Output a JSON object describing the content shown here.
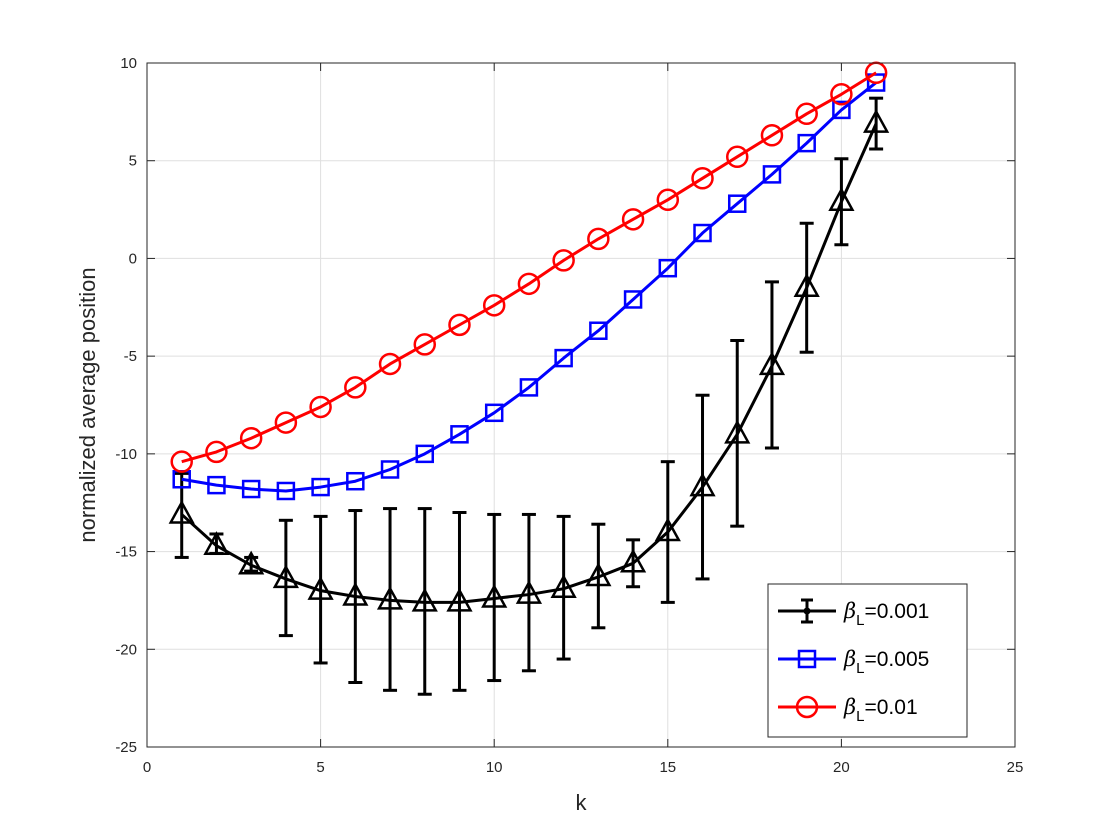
{
  "chart_data": {
    "type": "line",
    "title": "",
    "xlabel": "k",
    "ylabel": "normalized average position",
    "xlim": [
      0,
      25
    ],
    "ylim": [
      -25,
      10
    ],
    "xticks": [
      0,
      5,
      10,
      15,
      20,
      25
    ],
    "yticks": [
      -25,
      -20,
      -15,
      -10,
      -5,
      0,
      5,
      10
    ],
    "grid": true,
    "legend_position": "bottom-right",
    "x": [
      1,
      2,
      3,
      4,
      5,
      6,
      7,
      8,
      9,
      10,
      11,
      12,
      13,
      14,
      15,
      16,
      17,
      18,
      19,
      20,
      21
    ],
    "series": [
      {
        "name": "0.001",
        "legend": {
          "symbol": "β",
          "sub": "L",
          "value": "=0.001"
        },
        "color": "#000000",
        "marker": "triangle",
        "values": [
          -13.1,
          -14.7,
          -15.7,
          -16.4,
          -17.0,
          -17.3,
          -17.5,
          -17.6,
          -17.6,
          -17.4,
          -17.2,
          -16.9,
          -16.3,
          -15.6,
          -14.0,
          -11.7,
          -9.0,
          -5.5,
          -1.5,
          2.9,
          6.9
        ],
        "error_low": [
          -15.3,
          -15.1,
          -16.0,
          -19.3,
          -20.7,
          -21.7,
          -22.1,
          -22.3,
          -22.1,
          -21.6,
          -21.1,
          -20.5,
          -18.9,
          -16.8,
          -17.6,
          -16.4,
          -13.7,
          -9.7,
          -4.8,
          0.7,
          5.6
        ],
        "error_high": [
          -11.0,
          -14.1,
          -15.3,
          -13.4,
          -13.2,
          -12.9,
          -12.8,
          -12.8,
          -13.0,
          -13.1,
          -13.1,
          -13.2,
          -13.6,
          -14.4,
          -10.4,
          -7.0,
          -4.2,
          -1.2,
          1.8,
          5.1,
          8.2
        ]
      },
      {
        "name": "0.005",
        "legend": {
          "symbol": "β",
          "sub": "L",
          "value": "=0.005"
        },
        "color": "#0000ff",
        "marker": "square",
        "values": [
          -11.3,
          -11.6,
          -11.8,
          -11.9,
          -11.7,
          -11.4,
          -10.8,
          -10.0,
          -9.0,
          -7.9,
          -6.6,
          -5.1,
          -3.7,
          -2.1,
          -0.5,
          1.3,
          2.8,
          4.3,
          5.9,
          7.6,
          9.0
        ]
      },
      {
        "name": "0.01",
        "legend": {
          "symbol": "β",
          "sub": "L",
          "value": "=0.01"
        },
        "color": "#ff0000",
        "marker": "circle",
        "values": [
          -10.4,
          -9.9,
          -9.2,
          -8.4,
          -7.6,
          -6.6,
          -5.4,
          -4.4,
          -3.4,
          -2.4,
          -1.3,
          -0.1,
          1.0,
          2.0,
          3.0,
          4.1,
          5.2,
          6.3,
          7.4,
          8.4,
          9.5
        ]
      }
    ]
  }
}
